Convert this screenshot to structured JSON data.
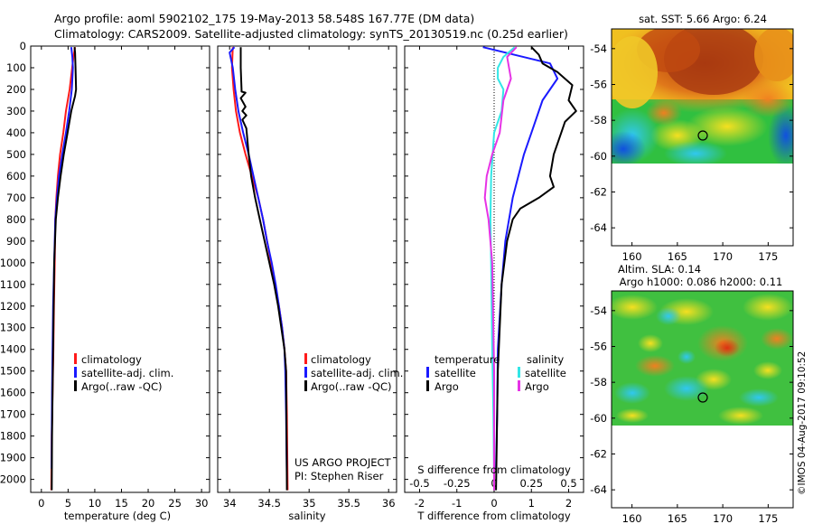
{
  "header": {
    "line1": "Argo profile: aoml 5902102_175 19-May-2013 58.548S 167.77E (DM data)",
    "line2": "Climatology: CARS2009. Satellite-adjusted climatology: synTS_20130519.nc (0.25d earlier)"
  },
  "colors": {
    "climatology": "#ff1a1a",
    "satellite": "#1a1aff",
    "argo": "#000000",
    "salinity_satellite": "#33e6e6",
    "salinity_argo": "#e633e6"
  },
  "depth_axis": {
    "ylim": [
      2060,
      0
    ],
    "ticks": [
      "0",
      "100",
      "200",
      "300",
      "400",
      "500",
      "600",
      "700",
      "800",
      "900",
      "1000",
      "1100",
      "1200",
      "1300",
      "1400",
      "1500",
      "1600",
      "1700",
      "1800",
      "1900",
      "2000"
    ]
  },
  "legend": {
    "climatology": "climatology",
    "satellite": "satellite-adj. clim.",
    "argo": "Argo(..raw -QC)"
  },
  "diff_legend": {
    "temperature_head": "temperature",
    "salinity_head": "salinity",
    "satellite": "satellite",
    "argo": "Argo"
  },
  "credits": {
    "project": "US ARGO PROJECT",
    "pi": "PI: Stephen Riser",
    "stamp": "©IMOS 04-Aug-2017 09:10:52"
  },
  "chart_data": [
    {
      "type": "line",
      "xlabel": "temperature (deg C)",
      "xlim": [
        -2,
        31.5
      ],
      "xticks": [
        0,
        5,
        10,
        15,
        20,
        25,
        30
      ],
      "series": [
        {
          "name": "climatology",
          "x": [
            6.3,
            6.0,
            5.3,
            4.6,
            4.1,
            3.5,
            3.1,
            2.8,
            2.6,
            2.5,
            2.35,
            2.25,
            2.1,
            1.95,
            1.85
          ],
          "depth": [
            5,
            50,
            200,
            300,
            400,
            500,
            600,
            700,
            800,
            1000,
            1200,
            1400,
            1600,
            1800,
            2050
          ]
        },
        {
          "name": "satellite-adj. clim.",
          "x": [
            5.6,
            5.8,
            5.9,
            5.7,
            5.2,
            4.6,
            3.9,
            3.3,
            2.9,
            2.6,
            2.4,
            2.2,
            2.1,
            2.0,
            1.95,
            1.9
          ],
          "depth": [
            5,
            50,
            100,
            200,
            300,
            400,
            500,
            600,
            700,
            800,
            1000,
            1200,
            1400,
            1600,
            1800,
            1950
          ]
        },
        {
          "name": "Argo(..raw -QC)",
          "x": [
            6.2,
            6.3,
            6.4,
            6.5,
            6.3,
            6.0,
            5.6,
            4.9,
            4.2,
            3.6,
            3.1,
            2.7,
            2.55,
            2.4,
            2.3,
            2.2,
            2.1,
            2.0,
            1.95
          ],
          "depth": [
            5,
            30,
            100,
            200,
            230,
            260,
            300,
            400,
            500,
            600,
            700,
            800,
            900,
            1000,
            1200,
            1400,
            1600,
            1800,
            2050
          ]
        }
      ]
    },
    {
      "type": "line",
      "xlabel": "salinity",
      "xlim": [
        33.85,
        36.1
      ],
      "xticks": [
        34,
        34.5,
        35,
        35.5,
        36
      ],
      "series": [
        {
          "name": "climatology",
          "x": [
            34.04,
            34.03,
            34.05,
            34.08,
            34.13,
            34.2,
            34.28,
            34.36,
            34.42,
            34.47,
            34.52,
            34.57,
            34.62,
            34.66,
            34.69,
            34.71,
            34.72,
            34.73
          ],
          "depth": [
            5,
            100,
            200,
            300,
            400,
            500,
            600,
            700,
            800,
            900,
            1000,
            1100,
            1200,
            1300,
            1400,
            1500,
            1700,
            2050
          ]
        },
        {
          "name": "satellite-adj. clim.",
          "x": [
            34.06,
            34.0,
            34.04,
            34.07,
            34.11,
            34.17,
            34.24,
            34.3,
            34.36,
            34.42,
            34.47,
            34.53,
            34.58,
            34.62,
            34.66,
            34.69,
            34.7,
            34.71,
            34.72
          ],
          "depth": [
            5,
            30,
            100,
            200,
            300,
            400,
            500,
            600,
            700,
            800,
            900,
            1000,
            1100,
            1200,
            1300,
            1400,
            1500,
            1700,
            2000
          ]
        },
        {
          "name": "Argo(..raw -QC)",
          "x": [
            34.14,
            34.14,
            34.15,
            34.15,
            34.2,
            34.14,
            34.2,
            34.16,
            34.21,
            34.16,
            34.21,
            34.22,
            34.24,
            34.27,
            34.32,
            34.38,
            34.44,
            34.5,
            34.56,
            34.61,
            34.65,
            34.69,
            34.71,
            34.72
          ],
          "depth": [
            5,
            100,
            200,
            210,
            215,
            240,
            280,
            300,
            320,
            340,
            380,
            420,
            500,
            600,
            700,
            800,
            900,
            1000,
            1100,
            1200,
            1300,
            1400,
            1500,
            2050
          ]
        }
      ]
    },
    {
      "type": "line",
      "xlabel": "T difference from climatology",
      "xlabel2": "S difference from climatology",
      "xlim": [
        -2.4,
        2.4
      ],
      "xticks": [
        -2,
        -1,
        0,
        1,
        2
      ],
      "xticks_top": [
        -0.5,
        -0.25,
        0,
        0.25,
        0.5
      ],
      "series": [
        {
          "name": "temperature satellite",
          "x": [
            -0.3,
            0.3,
            1.5,
            1.7,
            1.3,
            1.0,
            0.8,
            0.5,
            0.3,
            0.2,
            0.1,
            0.08,
            0.05
          ],
          "depth": [
            5,
            30,
            80,
            150,
            250,
            400,
            500,
            700,
            900,
            1100,
            1400,
            1700,
            1950
          ]
        },
        {
          "name": "temperature Argo",
          "x": [
            1.0,
            1.2,
            1.3,
            1.7,
            2.1,
            2.0,
            2.2,
            1.9,
            1.8,
            1.6,
            1.5,
            1.6,
            1.2,
            0.7,
            0.5,
            0.35,
            0.2,
            0.1,
            0.05
          ],
          "depth": [
            5,
            40,
            80,
            120,
            180,
            250,
            300,
            350,
            400,
            500,
            600,
            650,
            700,
            750,
            800,
            900,
            1100,
            1500,
            2050
          ]
        },
        {
          "name": "salinity satellite",
          "x": [
            0.55,
            0.25,
            0.1,
            0.1,
            0.25,
            0.2,
            0.0,
            -0.08,
            -0.1,
            -0.08,
            -0.05,
            -0.02,
            0.0
          ],
          "depth": [
            5,
            50,
            100,
            150,
            200,
            300,
            400,
            600,
            800,
            1000,
            1400,
            1700,
            2000
          ]
        },
        {
          "name": "salinity Argo",
          "x": [
            0.6,
            0.35,
            0.45,
            0.25,
            0.15,
            -0.05,
            -0.2,
            -0.25,
            -0.15,
            -0.05,
            0.0,
            0.0
          ],
          "depth": [
            5,
            50,
            150,
            250,
            400,
            500,
            600,
            700,
            800,
            1000,
            1500,
            2050
          ]
        }
      ]
    }
  ],
  "maps": {
    "sst": {
      "title": "sat. SST: 5.66 Argo: 6.24",
      "xticks": [
        "160",
        "165",
        "170",
        "175"
      ],
      "yticks": [
        "-54",
        "-56",
        "-58",
        "-60",
        "-62",
        "-64"
      ]
    },
    "sla": {
      "title1": "Altim. SLA: 0.14",
      "title2": "Argo h1000: 0.086 h2000: 0.11",
      "xticks": [
        "160",
        "165",
        "170",
        "175"
      ],
      "yticks": [
        "-54",
        "-56",
        "-58",
        "-60",
        "-62",
        "-64"
      ]
    }
  }
}
